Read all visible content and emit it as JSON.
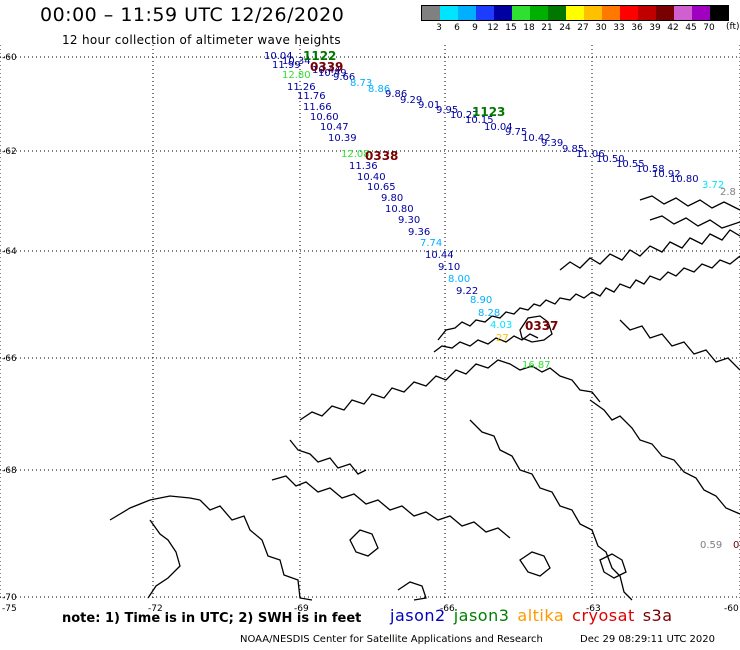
{
  "header": {
    "title": "00:00 – 11:59 UTC 12/26/2020",
    "subtitle": "12 hour collection of altimeter wave heights"
  },
  "color_scale": {
    "colors": [
      "#808080",
      "#00e5ff",
      "#00b0ff",
      "#1e3cff",
      "#0000a0",
      "#30e030",
      "#00b000",
      "#007800",
      "#ffff00",
      "#ffc000",
      "#ff7800",
      "#ff0000",
      "#c00000",
      "#780000",
      "#d060d0",
      "#a000c0",
      "#000000"
    ],
    "labels": [
      "3",
      "6",
      "9",
      "12",
      "15",
      "18",
      "21",
      "24",
      "27",
      "30",
      "33",
      "36",
      "39",
      "42",
      "45",
      "70"
    ],
    "unit": "(ft)"
  },
  "axes": {
    "lat_labels": [
      "-60",
      "-62",
      "-64",
      "-66",
      "-68",
      "-70"
    ],
    "lon_labels": [
      "-75",
      "-72",
      "-69",
      "-66",
      "-63",
      "-60"
    ]
  },
  "tracks": [
    {
      "label": "1122",
      "color": "#007800",
      "values": [
        {
          "v": "10.04",
          "c": "#0000a0"
        },
        {
          "v": "10.34",
          "c": "#0000a0"
        },
        {
          "v": "11.99",
          "c": "#0000a0"
        },
        {
          "v": "10.44",
          "c": "#0000a0"
        },
        {
          "v": "12.80",
          "c": "#30e030"
        },
        {
          "v": "10.49",
          "c": "#0000a0"
        },
        {
          "v": "9.66",
          "c": "#0000a0"
        },
        {
          "v": "8.73",
          "c": "#00b0ff"
        },
        {
          "v": "8.86",
          "c": "#00b0ff"
        },
        {
          "v": "9.86",
          "c": "#0000a0"
        },
        {
          "v": "9.29",
          "c": "#0000a0"
        },
        {
          "v": "9.01",
          "c": "#0000a0"
        },
        {
          "v": "9.95",
          "c": "#0000a0"
        },
        {
          "v": "10.27",
          "c": "#0000a0"
        },
        {
          "v": "10.15",
          "c": "#0000a0"
        },
        {
          "v": "10.04",
          "c": "#0000a0"
        },
        {
          "v": "9.75",
          "c": "#0000a0"
        },
        {
          "v": "10.42",
          "c": "#0000a0"
        },
        {
          "v": "9.39",
          "c": "#0000a0"
        },
        {
          "v": "9.85",
          "c": "#0000a0"
        },
        {
          "v": "11.06",
          "c": "#0000a0"
        },
        {
          "v": "10.50",
          "c": "#0000a0"
        },
        {
          "v": "10.55",
          "c": "#0000a0"
        },
        {
          "v": "10.58",
          "c": "#0000a0"
        },
        {
          "v": "10.92",
          "c": "#0000a0"
        },
        {
          "v": "10.80",
          "c": "#0000a0"
        },
        {
          "v": "3.72",
          "c": "#00e5ff"
        },
        {
          "v": "2.8",
          "c": "#808080"
        }
      ]
    },
    {
      "label": "1123",
      "color": "#007800"
    },
    {
      "label": "0339",
      "color": "#780000"
    },
    {
      "label": "0338",
      "color": "#780000",
      "values": [
        {
          "v": "11.26",
          "c": "#0000a0"
        },
        {
          "v": "11.76",
          "c": "#0000a0"
        },
        {
          "v": "11.66",
          "c": "#0000a0"
        },
        {
          "v": "10.60",
          "c": "#0000a0"
        },
        {
          "v": "10.47",
          "c": "#0000a0"
        },
        {
          "v": "10.39",
          "c": "#0000a0"
        },
        {
          "v": "12.08",
          "c": "#30e030"
        },
        {
          "v": "11.36",
          "c": "#0000a0"
        },
        {
          "v": "10.40",
          "c": "#0000a0"
        },
        {
          "v": "10.65",
          "c": "#0000a0"
        },
        {
          "v": "9.80",
          "c": "#0000a0"
        },
        {
          "v": "10.80",
          "c": "#0000a0"
        },
        {
          "v": "9.30",
          "c": "#0000a0"
        },
        {
          "v": "9.36",
          "c": "#0000a0"
        },
        {
          "v": "7.74",
          "c": "#00b0ff"
        },
        {
          "v": "10.44",
          "c": "#0000a0"
        },
        {
          "v": "9.10",
          "c": "#0000a0"
        },
        {
          "v": "8.00",
          "c": "#00b0ff"
        },
        {
          "v": "9.22",
          "c": "#0000a0"
        },
        {
          "v": "8.90",
          "c": "#00b0ff"
        },
        {
          "v": "8.28",
          "c": "#00b0ff"
        },
        {
          "v": "4.03",
          "c": "#00e5ff"
        },
        {
          "v": "27",
          "c": "#ffc000"
        },
        {
          "v": "16.87",
          "c": "#30e030"
        }
      ]
    },
    {
      "label": "0337",
      "color": "#780000"
    }
  ],
  "extra_values": [
    {
      "v": "0.59",
      "c": "#808080"
    },
    {
      "v": "0",
      "c": "#780000"
    }
  ],
  "footer": {
    "note": "note: 1) Time is in UTC; 2) SWH is in feet",
    "credit": "NOAA/NESDIS Center for Satellite Applications and Research",
    "stamp": "Dec 29 08:29:11 UTC 2020",
    "satellites": [
      {
        "name": "jason2",
        "color": "#0000c0"
      },
      {
        "name": "jason3",
        "color": "#008000"
      },
      {
        "name": "altika",
        "color": "#ff9900"
      },
      {
        "name": "cryosat",
        "color": "#e00000"
      },
      {
        "name": "s3a",
        "color": "#780000"
      }
    ]
  }
}
